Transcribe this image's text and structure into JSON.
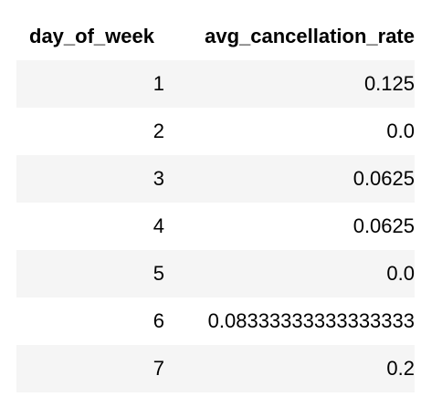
{
  "table": {
    "columns": [
      "day_of_week",
      "avg_cancellation_rate"
    ],
    "rows": [
      {
        "day_of_week": "1",
        "avg_cancellation_rate": "0.125"
      },
      {
        "day_of_week": "2",
        "avg_cancellation_rate": "0.0"
      },
      {
        "day_of_week": "3",
        "avg_cancellation_rate": "0.0625"
      },
      {
        "day_of_week": "4",
        "avg_cancellation_rate": "0.0625"
      },
      {
        "day_of_week": "5",
        "avg_cancellation_rate": "0.0"
      },
      {
        "day_of_week": "6",
        "avg_cancellation_rate": "0.08333333333333333"
      },
      {
        "day_of_week": "7",
        "avg_cancellation_rate": "0.2"
      }
    ]
  },
  "colors": {
    "stripe": "#f5f5f5",
    "background": "#ffffff",
    "text": "#000000"
  }
}
